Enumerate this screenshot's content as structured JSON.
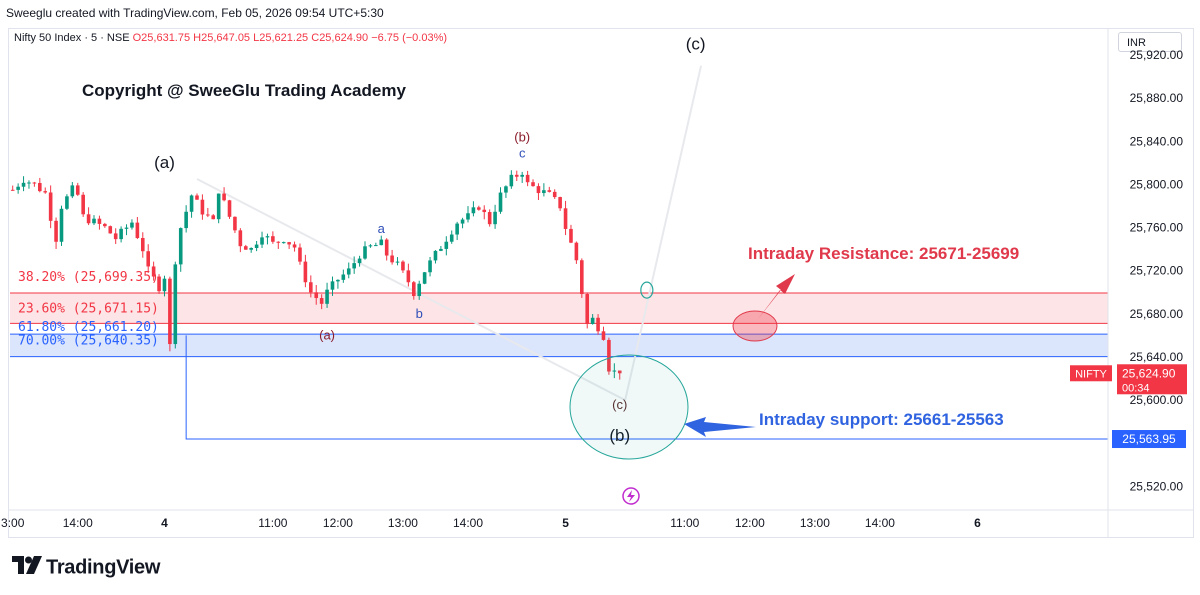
{
  "header": {
    "created_by": "Sweeglu created with TradingView.com, Feb 05, 2026 09:54 UTC+5:30",
    "symbol": "Nifty 50 Index · 5 · NSE",
    "open": "O25,631.75",
    "high": "H25,647.05",
    "low": "L25,621.25",
    "close": "C25,624.90",
    "change": "−6.75 (−0.03%)",
    "currency": "INR"
  },
  "footer": {
    "brand": "TradingView"
  },
  "colors": {
    "up": "#089981",
    "down": "#f23645",
    "blue": "#2962ff",
    "resistance_fill": "#fde4e6",
    "support_fill": "#dbe5fb",
    "annotation_red": "#e0394b",
    "annotation_blue": "#2f63e0",
    "circle": "#26a69a"
  },
  "chart_data": {
    "type": "candlestick",
    "title": "Copyright @ SweeGlu Trading Academy",
    "ylim": [
      25500,
      25945
    ],
    "y_ticks": [
      "25,920.00",
      "25,880.00",
      "25,840.00",
      "25,800.00",
      "25,760.00",
      "25,720.00",
      "25,680.00",
      "25,640.00",
      "25,600.00",
      "25,520.00"
    ],
    "y_tick_values": [
      25920,
      25880,
      25840,
      25800,
      25760,
      25720,
      25680,
      25640,
      25600,
      25520
    ],
    "x_ticks": [
      {
        "label": "3:00",
        "bar": 0
      },
      {
        "label": "14:00",
        "bar": 12
      },
      {
        "label": "4",
        "bar": 28,
        "bold": true
      },
      {
        "label": "11:00",
        "bar": 48
      },
      {
        "label": "12:00",
        "bar": 60
      },
      {
        "label": "13:00",
        "bar": 72
      },
      {
        "label": "14:00",
        "bar": 84
      },
      {
        "label": "5",
        "bar": 102,
        "bold": true
      },
      {
        "label": "11:00",
        "bar": 124
      },
      {
        "label": "12:00",
        "bar": 136
      },
      {
        "label": "13:00",
        "bar": 148
      },
      {
        "label": "14:00",
        "bar": 160
      },
      {
        "label": "6",
        "bar": 178,
        "bold": true
      }
    ],
    "bar_count": 190,
    "close_path": [
      [
        0,
        25795
      ],
      [
        2,
        25805
      ],
      [
        4,
        25800
      ],
      [
        6,
        25792
      ],
      [
        7,
        25770
      ],
      [
        8,
        25750
      ],
      [
        9,
        25780
      ],
      [
        11,
        25795
      ],
      [
        12,
        25790
      ],
      [
        13,
        25770
      ],
      [
        15,
        25765
      ],
      [
        17,
        25760
      ],
      [
        19,
        25750
      ],
      [
        21,
        25760
      ],
      [
        22,
        25765
      ],
      [
        24,
        25740
      ],
      [
        25,
        25720
      ],
      [
        27,
        25705
      ],
      [
        28,
        25715
      ],
      [
        29,
        25650
      ],
      [
        30,
        25730
      ],
      [
        31,
        25760
      ],
      [
        33,
        25790
      ],
      [
        35,
        25775
      ],
      [
        37,
        25765
      ],
      [
        38,
        25795
      ],
      [
        40,
        25770
      ],
      [
        42,
        25745
      ],
      [
        44,
        25740
      ],
      [
        46,
        25755
      ],
      [
        48,
        25745
      ],
      [
        50,
        25750
      ],
      [
        52,
        25742
      ],
      [
        53,
        25725
      ],
      [
        55,
        25700
      ],
      [
        57,
        25690
      ],
      [
        58,
        25700
      ],
      [
        60,
        25712
      ],
      [
        62,
        25720
      ],
      [
        64,
        25735
      ],
      [
        66,
        25742
      ],
      [
        68,
        25745
      ],
      [
        69,
        25735
      ],
      [
        71,
        25725
      ],
      [
        73,
        25710
      ],
      [
        74,
        25700
      ],
      [
        76,
        25720
      ],
      [
        78,
        25735
      ],
      [
        80,
        25750
      ],
      [
        82,
        25765
      ],
      [
        84,
        25770
      ],
      [
        86,
        25780
      ],
      [
        88,
        25765
      ],
      [
        90,
        25790
      ],
      [
        92,
        25805
      ],
      [
        94,
        25812
      ],
      [
        95,
        25800
      ],
      [
        97,
        25795
      ],
      [
        99,
        25790
      ],
      [
        100,
        25785
      ],
      [
        101,
        25780
      ],
      [
        102,
        25760
      ],
      [
        104,
        25730
      ],
      [
        105,
        25700
      ],
      [
        106,
        25670
      ],
      [
        107,
        25675
      ],
      [
        108,
        25668
      ],
      [
        109,
        25660
      ],
      [
        110,
        25630
      ],
      [
        111,
        25626
      ],
      [
        112,
        25624.9
      ]
    ],
    "hlines": [
      {
        "label": "38.20% (25,699.35)",
        "value": 25699.35,
        "color": "#f23645"
      },
      {
        "label": "23.60% (25,671.15)",
        "value": 25671.15,
        "color": "#f23645"
      },
      {
        "label": "61.80% (25,661.20)",
        "value": 25661.2,
        "color": "#2962ff"
      },
      {
        "label": "70.00% (25,640.35)",
        "value": 25640.35,
        "color": "#2962ff"
      }
    ],
    "support_line": {
      "value": 25563.95,
      "label": "25,563.95"
    },
    "last_price": {
      "symbol": "NIFTY",
      "price": "25,624.90",
      "countdown": "00:34",
      "value": 25624.9
    },
    "wave_labels": [
      {
        "text": "(a)",
        "bar": 28,
        "value": 25815,
        "style": "major"
      },
      {
        "text": "(b)",
        "bar": 94,
        "value": 25840,
        "style": "minor-red"
      },
      {
        "text": "c",
        "bar": 94,
        "value": 25825,
        "style": "minor-blue"
      },
      {
        "text": "a",
        "bar": 68,
        "value": 25755,
        "style": "minor-blue"
      },
      {
        "text": "b",
        "bar": 75,
        "value": 25676,
        "style": "minor-blue"
      },
      {
        "text": "(a)",
        "bar": 58,
        "value": 25656,
        "style": "minor-red"
      },
      {
        "text": "(c)",
        "bar": 112,
        "value": 25592,
        "style": "minor-dark"
      },
      {
        "text": "(b)",
        "bar": 112,
        "value": 25562,
        "style": "major"
      },
      {
        "text": "(c)",
        "bar": 126,
        "value": 25925,
        "style": "major"
      }
    ],
    "annotations": {
      "resistance": "Intraday Resistance: 25671-25699",
      "support": "Intraday support: 25661-25563"
    }
  }
}
